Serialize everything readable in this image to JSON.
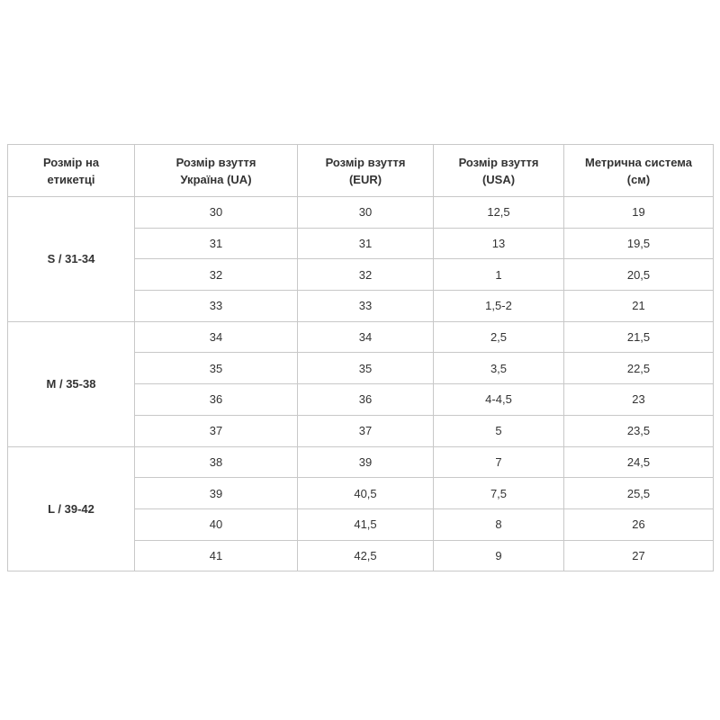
{
  "table": {
    "header": [
      "Розмір на\nетикетці",
      "Розмір взуття\nУкраїна (UA)",
      "Розмір взуття\n(EUR)",
      "Розмір взуття\n(USA)",
      "Метрична система\n(см)"
    ],
    "groups": [
      {
        "label": "S / 31-34",
        "rows": [
          [
            "30",
            "30",
            "12,5",
            "19"
          ],
          [
            "31",
            "31",
            "13",
            "19,5"
          ],
          [
            "32",
            "32",
            "1",
            "20,5"
          ],
          [
            "33",
            "33",
            "1,5-2",
            "21"
          ]
        ]
      },
      {
        "label": "M / 35-38",
        "rows": [
          [
            "34",
            "34",
            "2,5",
            "21,5"
          ],
          [
            "35",
            "35",
            "3,5",
            "22,5"
          ],
          [
            "36",
            "36",
            "4-4,5",
            "23"
          ],
          [
            "37",
            "37",
            "5",
            "23,5"
          ]
        ]
      },
      {
        "label": "L / 39-42",
        "rows": [
          [
            "38",
            "39",
            "7",
            "24,5"
          ],
          [
            "39",
            "40,5",
            "7,5",
            "25,5"
          ],
          [
            "40",
            "41,5",
            "8",
            "26"
          ],
          [
            "41",
            "42,5",
            "9",
            "27"
          ]
        ]
      }
    ]
  }
}
